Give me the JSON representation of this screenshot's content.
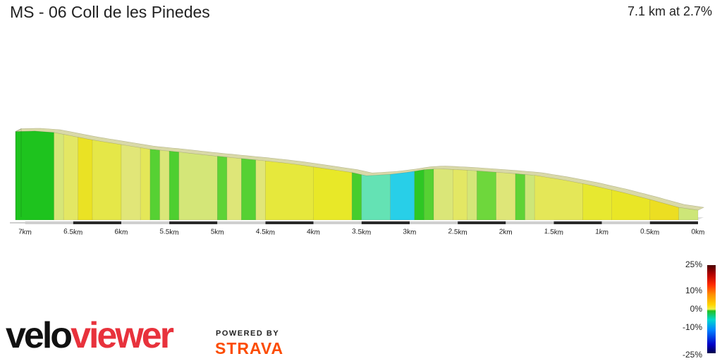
{
  "header": {
    "title": "MS - 06 Coll de les Pinedes",
    "summary": "7.1 km at 2.7%"
  },
  "legend": {
    "labels": [
      "25%",
      "10%",
      "0%",
      "-10%",
      "-25%"
    ]
  },
  "branding": {
    "logo_part1": "velo",
    "logo_part2": "viewer",
    "powered_by": "POWERED BY",
    "strava": "STRAVA"
  },
  "chart_data": {
    "type": "area",
    "title": "MS - 06 Coll de les Pinedes",
    "x_unit": "km",
    "x_direction": "reversed",
    "xlim": [
      0,
      7.1
    ],
    "x_ticks": [
      "0km",
      "0.5km",
      "1km",
      "1.5km",
      "2km",
      "2.5km",
      "3km",
      "3.5km",
      "4km",
      "4.5km",
      "5km",
      "5.5km",
      "6km",
      "6.5km",
      "7km"
    ],
    "distance_km": 7.1,
    "average_gradient_pct": 2.7,
    "profile": {
      "distance_km": [
        7.1,
        6.9,
        6.7,
        6.5,
        6.3,
        6.0,
        5.7,
        5.4,
        5.1,
        4.8,
        4.5,
        4.2,
        3.9,
        3.6,
        3.45,
        3.2,
        3.0,
        2.85,
        2.7,
        2.4,
        2.0,
        1.7,
        1.4,
        1.1,
        0.8,
        0.5,
        0.2,
        0.0
      ],
      "relative_elevation_m": [
        190,
        191,
        188,
        180,
        172,
        162,
        152,
        146,
        139,
        133,
        127,
        120,
        111,
        102,
        95,
        98,
        103,
        108,
        110,
        107,
        101,
        96,
        86,
        74,
        60,
        44,
        27,
        21
      ]
    },
    "gradient_segments_pct": [
      {
        "from_km": 7.1,
        "to_km": 6.7,
        "gradient_pct": -0.5
      },
      {
        "from_km": 6.7,
        "to_km": 6.6,
        "gradient_pct": 2.2
      },
      {
        "from_km": 6.6,
        "to_km": 6.45,
        "gradient_pct": 3.5
      },
      {
        "from_km": 6.45,
        "to_km": 6.3,
        "gradient_pct": 5.5
      },
      {
        "from_km": 6.3,
        "to_km": 6.0,
        "gradient_pct": 4.2
      },
      {
        "from_km": 6.0,
        "to_km": 5.8,
        "gradient_pct": 3.0
      },
      {
        "from_km": 5.8,
        "to_km": 5.7,
        "gradient_pct": 3.8
      },
      {
        "from_km": 5.7,
        "to_km": 5.6,
        "gradient_pct": 0.2
      },
      {
        "from_km": 5.6,
        "to_km": 5.5,
        "gradient_pct": 2.5
      },
      {
        "from_km": 5.5,
        "to_km": 5.4,
        "gradient_pct": 0.1
      },
      {
        "from_km": 5.4,
        "to_km": 5.0,
        "gradient_pct": 2.0
      },
      {
        "from_km": 5.0,
        "to_km": 4.9,
        "gradient_pct": 0.3
      },
      {
        "from_km": 4.9,
        "to_km": 4.75,
        "gradient_pct": 2.8
      },
      {
        "from_km": 4.75,
        "to_km": 4.6,
        "gradient_pct": 0.2
      },
      {
        "from_km": 4.6,
        "to_km": 4.5,
        "gradient_pct": 3.0
      },
      {
        "from_km": 4.5,
        "to_km": 4.0,
        "gradient_pct": 4.5
      },
      {
        "from_km": 4.0,
        "to_km": 3.6,
        "gradient_pct": 5.0
      },
      {
        "from_km": 3.6,
        "to_km": 3.5,
        "gradient_pct": 0.0
      },
      {
        "from_km": 3.5,
        "to_km": 3.2,
        "gradient_pct": -1.8
      },
      {
        "from_km": 3.2,
        "to_km": 2.95,
        "gradient_pct": -4.0
      },
      {
        "from_km": 2.95,
        "to_km": 2.85,
        "gradient_pct": -0.3
      },
      {
        "from_km": 2.85,
        "to_km": 2.75,
        "gradient_pct": 0.2
      },
      {
        "from_km": 2.75,
        "to_km": 2.55,
        "gradient_pct": 2.5
      },
      {
        "from_km": 2.55,
        "to_km": 2.4,
        "gradient_pct": 3.5
      },
      {
        "from_km": 2.4,
        "to_km": 2.3,
        "gradient_pct": 2.0
      },
      {
        "from_km": 2.3,
        "to_km": 2.1,
        "gradient_pct": 0.5
      },
      {
        "from_km": 2.1,
        "to_km": 1.9,
        "gradient_pct": 2.8
      },
      {
        "from_km": 1.9,
        "to_km": 1.8,
        "gradient_pct": 0.3
      },
      {
        "from_km": 1.8,
        "to_km": 1.7,
        "gradient_pct": 1.5
      },
      {
        "from_km": 1.7,
        "to_km": 1.2,
        "gradient_pct": 3.8
      },
      {
        "from_km": 1.2,
        "to_km": 0.9,
        "gradient_pct": 4.8
      },
      {
        "from_km": 0.9,
        "to_km": 0.5,
        "gradient_pct": 5.2
      },
      {
        "from_km": 0.5,
        "to_km": 0.2,
        "gradient_pct": 5.8
      },
      {
        "from_km": 0.2,
        "to_km": 0.0,
        "gradient_pct": 1.5
      }
    ],
    "legend": {
      "type": "color-scale",
      "range_pct": [
        -25,
        25
      ],
      "position": "bottom-right"
    },
    "grid": false
  }
}
